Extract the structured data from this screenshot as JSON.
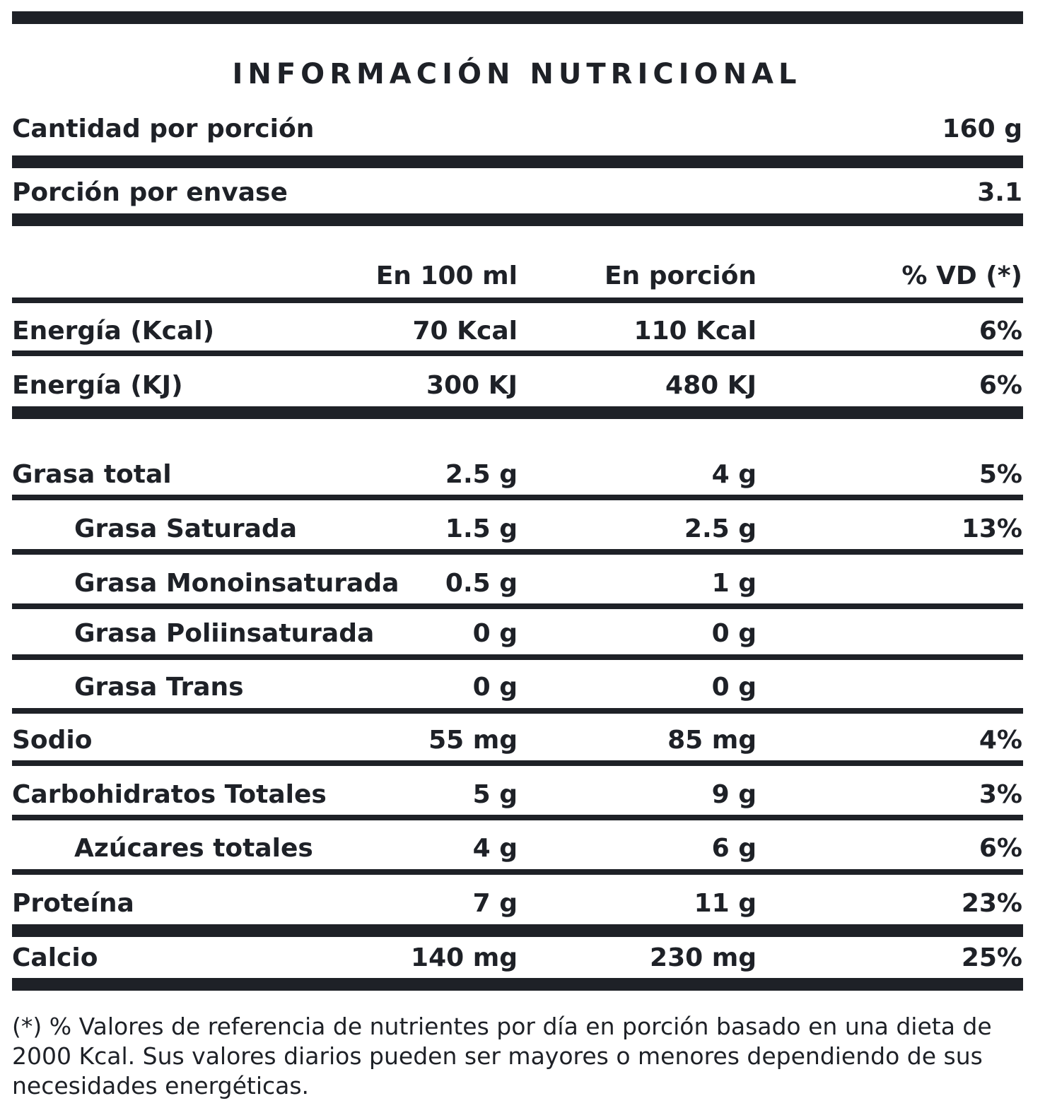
{
  "title": "INFORMACIÓN NUTRICIONAL",
  "serving": {
    "amount_label": "Cantidad por porción",
    "amount_value": "160 g",
    "per_container_label": "Porción por envase",
    "per_container_value": "3.1"
  },
  "columns": {
    "per_100": "En 100 ml",
    "per_portion": "En porción",
    "dv": "% VD (*)"
  },
  "rows": [
    {
      "label": "Energía (Kcal)",
      "per_100": "70 Kcal",
      "per_portion": "110 Kcal",
      "dv": "6%"
    },
    {
      "label": "Energía (KJ)",
      "per_100": "300 KJ",
      "per_portion": "480 KJ",
      "dv": "6%"
    },
    {
      "label": "Grasa total",
      "per_100": "2.5 g",
      "per_portion": "4 g",
      "dv": "5%"
    },
    {
      "label": "Grasa Saturada",
      "per_100": "1.5 g",
      "per_portion": "2.5 g",
      "dv": "13%"
    },
    {
      "label": "Grasa Monoinsaturada",
      "per_100": "0.5 g",
      "per_portion": "1 g",
      "dv": ""
    },
    {
      "label": "Grasa Poliinsaturada",
      "per_100": "0 g",
      "per_portion": "0 g",
      "dv": ""
    },
    {
      "label": "Grasa Trans",
      "per_100": "0 g",
      "per_portion": "0 g",
      "dv": ""
    },
    {
      "label": "Sodio",
      "per_100": "55 mg",
      "per_portion": "85 mg",
      "dv": "4%"
    },
    {
      "label": "Carbohidratos Totales",
      "per_100": "5 g",
      "per_portion": "9 g",
      "dv": "3%"
    },
    {
      "label": "Azúcares totales",
      "per_100": "4 g",
      "per_portion": "6 g",
      "dv": "6%"
    },
    {
      "label": "Proteína",
      "per_100": "7 g",
      "per_portion": "11 g",
      "dv": "23%"
    },
    {
      "label": "Calcio",
      "per_100": "140 mg",
      "per_portion": "230 mg",
      "dv": "25%"
    }
  ],
  "footnote": "(*) % Valores de referencia de nutrientes por día en porción basado en una dieta de 2000 Kcal. Sus valores diarios pueden ser mayores o menores dependiendo de sus necesidades energéticas.",
  "colors": {
    "ink": "#1e2127",
    "background": "#ffffff"
  }
}
